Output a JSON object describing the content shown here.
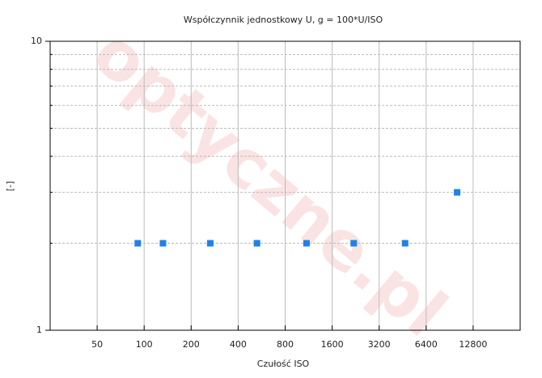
{
  "chart_data": {
    "type": "scatter",
    "title": "Współczynnik jednostkowy U, g = 100*U/ISO",
    "x_label": "Czułość ISO",
    "y_label": "[-]",
    "watermark": "optyczne.pl",
    "x": [
      91,
      132,
      265,
      528,
      1096,
      2200,
      4690,
      10100
    ],
    "values": [
      2,
      2,
      2,
      2,
      2,
      2,
      2,
      3
    ],
    "color": "#1e82e6",
    "xlog": true,
    "ylog": true,
    "xlim": [
      25,
      25600
    ],
    "ylim": [
      1,
      10
    ],
    "xticks": [
      50,
      100,
      200,
      400,
      800,
      1600,
      3200,
      6400,
      12800
    ],
    "yticks": [
      1,
      10
    ],
    "yminor": [
      2,
      3,
      4,
      5,
      6,
      7,
      8,
      9
    ],
    "grid": true
  }
}
